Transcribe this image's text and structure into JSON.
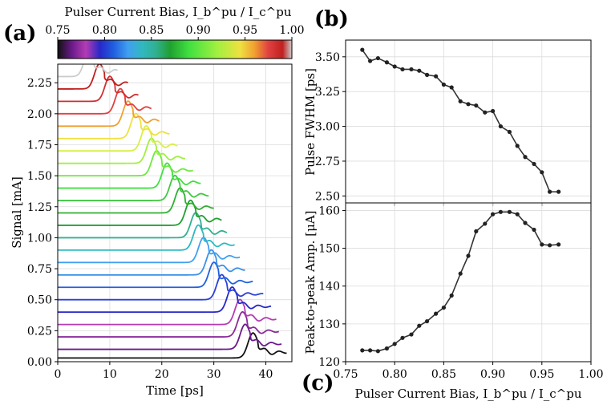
{
  "panel_labels": {
    "a": "(a)",
    "b": "(b)",
    "c": "(c)"
  },
  "colorbar": {
    "title": "Pulser Current Bias, I_b^pu / I_c^pu",
    "ticks": [
      0.75,
      0.8,
      0.85,
      0.9,
      0.95,
      1.0
    ],
    "tick_labels": [
      "0.75",
      "0.80",
      "0.85",
      "0.90",
      "0.95",
      "1.00"
    ],
    "range": [
      0.75,
      1.0
    ],
    "colormap_stops": [
      {
        "v": 0.75,
        "color": "#111111"
      },
      {
        "v": 0.765,
        "color": "#6a1a8a"
      },
      {
        "v": 0.78,
        "color": "#b43cb4"
      },
      {
        "v": 0.795,
        "color": "#2828c8"
      },
      {
        "v": 0.81,
        "color": "#2060e0"
      },
      {
        "v": 0.825,
        "color": "#40a0f0"
      },
      {
        "v": 0.84,
        "color": "#30b8c0"
      },
      {
        "v": 0.855,
        "color": "#30b090"
      },
      {
        "v": 0.87,
        "color": "#20a030"
      },
      {
        "v": 0.89,
        "color": "#40e040"
      },
      {
        "v": 0.92,
        "color": "#a0f040"
      },
      {
        "v": 0.945,
        "color": "#f0e040"
      },
      {
        "v": 0.96,
        "color": "#f0a030"
      },
      {
        "v": 0.975,
        "color": "#e04040"
      },
      {
        "v": 0.99,
        "color": "#c02020"
      },
      {
        "v": 1.0,
        "color": "#cccccc"
      }
    ]
  },
  "chart_data": [
    {
      "id": "a",
      "type": "line",
      "title": "",
      "xlabel": "Time [ps]",
      "ylabel": "Signal [mA]",
      "xlim": [
        0,
        45
      ],
      "ylim": [
        0,
        2.4
      ],
      "xticks": [
        0,
        10,
        20,
        30,
        40
      ],
      "xtick_labels": [
        "0",
        "10",
        "20",
        "30",
        "40"
      ],
      "yticks": [
        0,
        0.25,
        0.5,
        0.75,
        1.0,
        1.25,
        1.5,
        1.75,
        2.0,
        2.25
      ],
      "ytick_labels": [
        "0.00",
        "0.25",
        "0.50",
        "0.75",
        "1.00",
        "1.25",
        "1.50",
        "1.75",
        "2.00",
        "2.25"
      ],
      "grid": true,
      "series_note": "Waterfall of pulse traces; each trace offset by baseline, colored by pulser bias",
      "series": [
        {
          "bias": 0.76,
          "color": "#111111",
          "baseline": 0.03,
          "start": 0,
          "peak_t": 37.5,
          "end": 44.0
        },
        {
          "bias": 0.765,
          "color": "#6a1a8a",
          "baseline": 0.1,
          "start": 0,
          "peak_t": 36.0,
          "end": 43.0
        },
        {
          "bias": 0.775,
          "color": "#8a2a9a",
          "baseline": 0.2,
          "start": 0,
          "peak_t": 35.5,
          "end": 42.5
        },
        {
          "bias": 0.785,
          "color": "#b43cb4",
          "baseline": 0.3,
          "start": 0,
          "peak_t": 35.0,
          "end": 42.0
        },
        {
          "bias": 0.795,
          "color": "#2828c8",
          "baseline": 0.4,
          "start": 0,
          "peak_t": 33.5,
          "end": 41.0
        },
        {
          "bias": 0.805,
          "color": "#2a40d8",
          "baseline": 0.5,
          "start": 0,
          "peak_t": 31.5,
          "end": 39.5
        },
        {
          "bias": 0.815,
          "color": "#2060e0",
          "baseline": 0.6,
          "start": 0,
          "peak_t": 30.0,
          "end": 37.5
        },
        {
          "bias": 0.825,
          "color": "#3c90e8",
          "baseline": 0.7,
          "start": 0,
          "peak_t": 29.5,
          "end": 36.0
        },
        {
          "bias": 0.835,
          "color": "#40a0f0",
          "baseline": 0.8,
          "start": 0,
          "peak_t": 28.0,
          "end": 35.0
        },
        {
          "bias": 0.845,
          "color": "#30b8c0",
          "baseline": 0.9,
          "start": 0,
          "peak_t": 27.0,
          "end": 34.0
        },
        {
          "bias": 0.855,
          "color": "#30b090",
          "baseline": 1.0,
          "start": 0,
          "peak_t": 26.5,
          "end": 32.5
        },
        {
          "bias": 0.865,
          "color": "#20a030",
          "baseline": 1.1,
          "start": 0,
          "peak_t": 25.5,
          "end": 31.5
        },
        {
          "bias": 0.875,
          "color": "#30b030",
          "baseline": 1.2,
          "start": 0,
          "peak_t": 23.5,
          "end": 30.0
        },
        {
          "bias": 0.885,
          "color": "#40c840",
          "baseline": 1.3,
          "start": 0,
          "peak_t": 22.5,
          "end": 29.0
        },
        {
          "bias": 0.895,
          "color": "#40e040",
          "baseline": 1.4,
          "start": 0,
          "peak_t": 21.0,
          "end": 27.5
        },
        {
          "bias": 0.905,
          "color": "#70e840",
          "baseline": 1.5,
          "start": 0,
          "peak_t": 19.0,
          "end": 26.0
        },
        {
          "bias": 0.915,
          "color": "#a0f040",
          "baseline": 1.6,
          "start": 0,
          "peak_t": 18.0,
          "end": 24.5
        },
        {
          "bias": 0.925,
          "color": "#d8f040",
          "baseline": 1.7,
          "start": 0,
          "peak_t": 17.0,
          "end": 23.0
        },
        {
          "bias": 0.935,
          "color": "#f0e040",
          "baseline": 1.8,
          "start": 0,
          "peak_t": 15.0,
          "end": 21.5
        },
        {
          "bias": 0.945,
          "color": "#f0a030",
          "baseline": 1.9,
          "start": 0,
          "peak_t": 13.5,
          "end": 19.5
        },
        {
          "bias": 0.955,
          "color": "#e04040",
          "baseline": 2.0,
          "start": 0,
          "peak_t": 12.0,
          "end": 18.0
        },
        {
          "bias": 0.965,
          "color": "#d03030",
          "baseline": 2.1,
          "start": 0,
          "peak_t": 10.0,
          "end": 15.5
        },
        {
          "bias": 0.975,
          "color": "#c02020",
          "baseline": 2.2,
          "start": 0,
          "peak_t": 8.0,
          "end": 13.5
        },
        {
          "bias": 0.985,
          "color": "#cccccc",
          "baseline": 2.3,
          "start": 0,
          "peak_t": 6.0,
          "end": 11.5
        }
      ]
    },
    {
      "id": "b",
      "type": "line",
      "title": "",
      "xlabel": "",
      "ylabel": "Pulse FWHM [ps]",
      "xlim": [
        0.75,
        1.0
      ],
      "ylim": [
        2.45,
        3.62
      ],
      "yticks": [
        2.5,
        2.75,
        3.0,
        3.25,
        3.5
      ],
      "ytick_labels": [
        "2.50",
        "2.75",
        "3.00",
        "3.25",
        "3.50"
      ],
      "grid": true,
      "x": [
        0.767,
        0.775,
        0.783,
        0.792,
        0.8,
        0.808,
        0.817,
        0.825,
        0.833,
        0.842,
        0.85,
        0.858,
        0.867,
        0.875,
        0.883,
        0.892,
        0.9,
        0.908,
        0.917,
        0.925,
        0.933,
        0.942,
        0.95,
        0.958,
        0.967
      ],
      "values": [
        3.55,
        3.47,
        3.49,
        3.46,
        3.43,
        3.41,
        3.41,
        3.4,
        3.37,
        3.36,
        3.3,
        3.28,
        3.18,
        3.16,
        3.15,
        3.1,
        3.11,
        3.0,
        2.96,
        2.86,
        2.78,
        2.73,
        2.67,
        2.53,
        2.53
      ]
    },
    {
      "id": "c",
      "type": "line",
      "title": "",
      "xlabel": "Pulser Current Bias, I_b^pu / I_c^pu",
      "ylabel": "Peak-to-peak Amp. [μA]",
      "xlim": [
        0.75,
        1.0
      ],
      "ylim": [
        120,
        162
      ],
      "xticks": [
        0.75,
        0.8,
        0.85,
        0.9,
        0.95,
        1.0
      ],
      "xtick_labels": [
        "0.75",
        "0.80",
        "0.85",
        "0.90",
        "0.95",
        "1.00"
      ],
      "yticks": [
        120,
        130,
        140,
        150,
        160
      ],
      "ytick_labels": [
        "120",
        "130",
        "140",
        "150",
        "160"
      ],
      "grid": true,
      "x": [
        0.767,
        0.775,
        0.783,
        0.792,
        0.8,
        0.808,
        0.817,
        0.825,
        0.833,
        0.842,
        0.85,
        0.858,
        0.867,
        0.875,
        0.883,
        0.892,
        0.9,
        0.908,
        0.917,
        0.925,
        0.933,
        0.942,
        0.95,
        0.958,
        0.967
      ],
      "values": [
        123.0,
        123.0,
        122.8,
        123.5,
        124.7,
        126.3,
        127.2,
        129.5,
        130.7,
        132.7,
        134.3,
        137.5,
        143.3,
        148.0,
        154.5,
        156.5,
        159.0,
        159.6,
        159.6,
        159.0,
        156.7,
        154.9,
        151.0,
        150.8,
        151.0
      ]
    }
  ]
}
